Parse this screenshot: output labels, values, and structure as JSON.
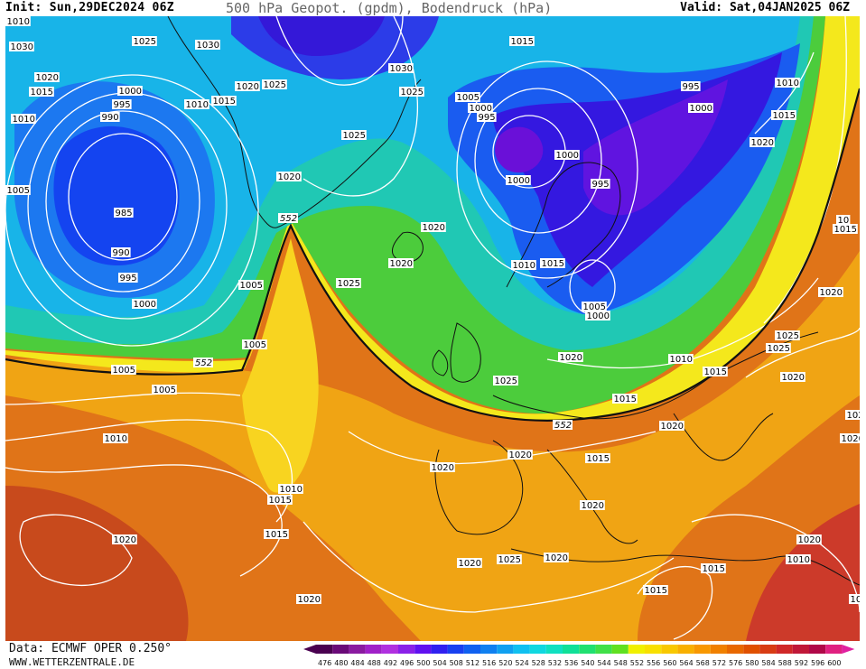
{
  "header": {
    "init_text": "Init: Sun,29DEC2024 06Z",
    "title": "500 hPa Geopot. (gpdm), Bodendruck (hPa)",
    "valid_text": "Valid: Sat,04JAN2025 06Z"
  },
  "footer": {
    "source": "Data: ECMWF OPER 0.250°",
    "website": "WWW.WETTERZENTRALE.DE"
  },
  "legend": {
    "values": [
      "476",
      "480",
      "484",
      "488",
      "492",
      "496",
      "500",
      "504",
      "508",
      "512",
      "516",
      "520",
      "524",
      "528",
      "532",
      "536",
      "540",
      "544",
      "548",
      "552",
      "556",
      "560",
      "564",
      "568",
      "572",
      "576",
      "580",
      "584",
      "588",
      "592",
      "596",
      "600"
    ],
    "colors": [
      "#4a0050",
      "#6a0a78",
      "#8a1aa0",
      "#a020c8",
      "#b030e0",
      "#8a20e8",
      "#6010f0",
      "#3020f0",
      "#1840f0",
      "#1060f0",
      "#1080f0",
      "#10a0f0",
      "#10c0f0",
      "#10d8e0",
      "#10e0c0",
      "#10e098",
      "#20e070",
      "#40e048",
      "#60e020",
      "#f0f000",
      "#f8e000",
      "#f8c800",
      "#f8b000",
      "#f89800",
      "#f08000",
      "#e86800",
      "#e05000",
      "#d83c14",
      "#d02828",
      "#c01838",
      "#b00848",
      "#e02080"
    ],
    "arrow_left_color": "#4a0050",
    "arrow_right_color": "#e020a0"
  },
  "map": {
    "isobar_labels": [
      "1030",
      "1025",
      "1030",
      "1015",
      "1020",
      "1015",
      "1010",
      "1000",
      "995",
      "990",
      "985",
      "990",
      "995",
      "1000",
      "1005",
      "1010",
      "1015",
      "1020",
      "1025",
      "1025",
      "1020",
      "1030",
      "1025",
      "1020",
      "1020",
      "1005",
      "1005",
      "1005",
      "1005",
      "1010",
      "1015",
      "1010",
      "1005",
      "1000",
      "995",
      "1000",
      "1000",
      "995",
      "995",
      "1000",
      "1010",
      "1015",
      "1020",
      "1025",
      "1010",
      "1015",
      "1005",
      "1000",
      "1020",
      "1025",
      "1025",
      "1025",
      "1020",
      "1015",
      "1010",
      "1015",
      "1020",
      "1020",
      "1020",
      "1015",
      "1020",
      "1020",
      "1020",
      "1025",
      "1020",
      "1015",
      "1020",
      "1020",
      "102",
      "1015",
      "1010",
      "1005",
      "1020",
      "1015",
      "1020",
      "10",
      "1015",
      "1010"
    ],
    "geopot_labels": [
      "552",
      "552",
      "552"
    ]
  }
}
